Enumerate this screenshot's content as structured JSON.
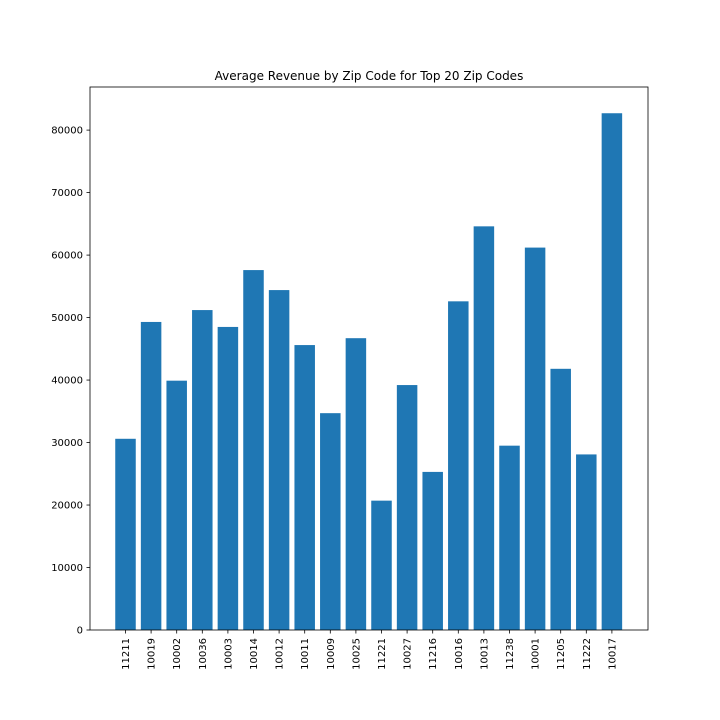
{
  "chart_data": {
    "type": "bar",
    "title": "Average Revenue by Zip Code for Top 20 Zip Codes",
    "xlabel": "",
    "ylabel": "",
    "categories": [
      "11211",
      "10019",
      "10002",
      "10036",
      "10003",
      "10014",
      "10012",
      "10011",
      "10009",
      "10025",
      "11221",
      "10027",
      "11216",
      "10016",
      "10013",
      "11238",
      "10001",
      "11205",
      "11222",
      "10017"
    ],
    "values": [
      30600,
      49300,
      39900,
      51200,
      48500,
      57600,
      54400,
      45600,
      34700,
      46700,
      20700,
      39200,
      25300,
      52600,
      64600,
      29500,
      61200,
      41800,
      28100,
      82700
    ],
    "ylim": [
      0,
      86900
    ],
    "yticks": [
      0,
      10000,
      20000,
      30000,
      40000,
      50000,
      60000,
      70000,
      80000
    ],
    "ytick_labels": [
      "0",
      "10000",
      "20000",
      "30000",
      "40000",
      "50000",
      "60000",
      "70000",
      "80000"
    ],
    "bar_color": "#1f77b4",
    "grid": false,
    "x_tick_rotation": "vertical"
  }
}
